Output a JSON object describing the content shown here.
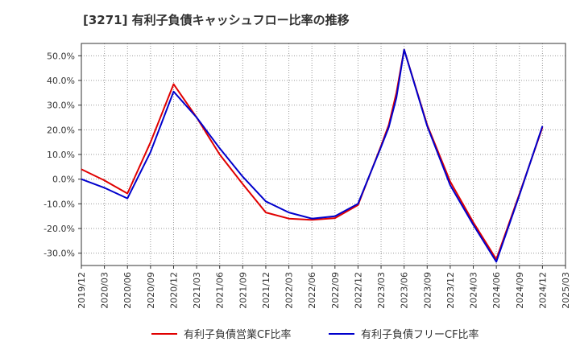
{
  "chart_data": {
    "type": "line",
    "title": "[3271]  有利子負債キャッシュフロー比率の推移",
    "xlabel": "",
    "ylabel": "",
    "x_ticks": [
      "2019/12",
      "2020/03",
      "2020/06",
      "2020/09",
      "2020/12",
      "2021/03",
      "2021/06",
      "2021/09",
      "2021/12",
      "2022/03",
      "2022/06",
      "2022/09",
      "2022/12",
      "2023/03",
      "2023/06",
      "2023/09",
      "2023/12",
      "2024/03",
      "2024/06",
      "2024/09",
      "2024/12",
      "2025/03"
    ],
    "y_ticks": [
      "50.0%",
      "40.0%",
      "30.0%",
      "20.0%",
      "10.0%",
      "0.0%",
      "-10.0%",
      "-20.0%",
      "-30.0%"
    ],
    "y_tick_values": [
      50,
      40,
      30,
      20,
      10,
      0,
      -10,
      -20,
      -30
    ],
    "ylim": [
      -35,
      55
    ],
    "grid": true,
    "legend_position": "bottom",
    "series": [
      {
        "name": "有利子負債営業CF比率",
        "color": "#e00000",
        "points": [
          [
            "2019/12",
            4.0
          ],
          [
            "2020/03",
            -0.5
          ],
          [
            "2020/06",
            -5.8
          ],
          [
            "2020/09",
            15.0
          ],
          [
            "2020/12",
            38.5
          ],
          [
            "2021/03",
            25.0
          ],
          [
            "2021/06",
            10.0
          ],
          [
            "2021/09",
            -2.0
          ],
          [
            "2021/12",
            -13.5
          ],
          [
            "2022/03",
            -16.0
          ],
          [
            "2022/06",
            -16.5
          ],
          [
            "2022/09",
            -15.8
          ],
          [
            "2022/12",
            -10.5
          ],
          [
            "2023/03",
            13.5
          ],
          [
            "2023/04",
            22.0
          ],
          [
            "2023/05",
            35.0
          ],
          [
            "2023/06",
            52.5
          ],
          [
            "2023/09",
            22.0
          ],
          [
            "2023/12",
            -1.0
          ],
          [
            "2024/03",
            -17.5
          ],
          [
            "2024/06",
            -32.5
          ],
          [
            "2024/09",
            -6.0
          ],
          [
            "2024/12",
            21.0
          ]
        ]
      },
      {
        "name": "有利子負債フリーCF比率",
        "color": "#0000cc",
        "points": [
          [
            "2019/12",
            0.0
          ],
          [
            "2020/03",
            -3.5
          ],
          [
            "2020/06",
            -7.8
          ],
          [
            "2020/09",
            11.0
          ],
          [
            "2020/12",
            35.5
          ],
          [
            "2021/03",
            25.0
          ],
          [
            "2021/06",
            12.5
          ],
          [
            "2021/09",
            1.0
          ],
          [
            "2021/12",
            -9.0
          ],
          [
            "2022/03",
            -13.5
          ],
          [
            "2022/06",
            -16.0
          ],
          [
            "2022/09",
            -15.0
          ],
          [
            "2022/12",
            -10.0
          ],
          [
            "2023/03",
            13.0
          ],
          [
            "2023/04",
            21.0
          ],
          [
            "2023/05",
            33.0
          ],
          [
            "2023/06",
            52.5
          ],
          [
            "2023/09",
            21.5
          ],
          [
            "2023/12",
            -2.5
          ],
          [
            "2024/03",
            -18.5
          ],
          [
            "2024/06",
            -33.5
          ],
          [
            "2024/09",
            -6.5
          ],
          [
            "2024/12",
            21.5
          ]
        ]
      }
    ]
  }
}
